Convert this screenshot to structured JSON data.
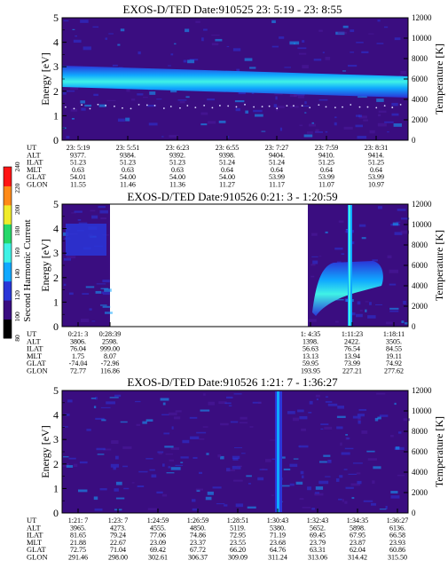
{
  "colors": {
    "background": "#ffffff",
    "text": "#000000",
    "spectrogram_low": "#3a0d80",
    "spectrogram_mid": "#2a36d8",
    "spectrogram_band": "#10a8ff",
    "spectrogram_peak": "#3ff2e6",
    "colorbar": [
      "#000000",
      "#3a0d80",
      "#2a36d8",
      "#10a8ff",
      "#3ff2e6",
      "#25d86a",
      "#f0ec2a",
      "#ff8a18",
      "#ff1515"
    ]
  },
  "colorbar": {
    "label": "Second Harmonic Current",
    "ticks": [
      "80",
      "100",
      "120",
      "140",
      "160",
      "180",
      "200",
      "220",
      "240"
    ]
  },
  "panels": [
    {
      "title": "EXOS-D/TED   Date:910525  23: 5:19 - 23: 8:55",
      "ylabel": "Energy [eV]",
      "y2label": "Temperature [K]",
      "orbit_rows": [
        {
          "label": "UT",
          "values": [
            "23: 5:19",
            "23: 5:51",
            "23: 6:23",
            "23: 6:55",
            "23: 7:27",
            "23: 7:59",
            "23: 8:31"
          ]
        },
        {
          "label": "ALT",
          "values": [
            "9377.",
            "9384.",
            "9392.",
            "9398.",
            "9404.",
            "9410.",
            "9414."
          ]
        },
        {
          "label": "ILAT",
          "values": [
            "51.23",
            "51.23",
            "51.23",
            "51.24",
            "51.24",
            "51.25",
            "51.25"
          ]
        },
        {
          "label": "MLT",
          "values": [
            "0.63",
            "0.63",
            "0.63",
            "0.64",
            "0.64",
            "0.64",
            "0.64"
          ]
        },
        {
          "label": "GLAT",
          "values": [
            "54.01",
            "54.00",
            "54.00",
            "54.00",
            "53.99",
            "53.99",
            "53.99"
          ]
        },
        {
          "label": "GLON",
          "values": [
            "11.55",
            "11.46",
            "11.36",
            "11.27",
            "11.17",
            "11.07",
            "10.97"
          ]
        }
      ]
    },
    {
      "title": "EXOS-D/TED   Date:910526  0:21: 3 - 1:20:59",
      "ylabel": "Energy [eV]",
      "y2label": "Temperature [K]",
      "orbit_rows": [
        {
          "label": "UT",
          "values": [
            "0:21: 3",
            "0:28:39",
            "1: 4:35",
            "1:11:23",
            "1:18:11"
          ]
        },
        {
          "label": "ALT",
          "values": [
            "3806.",
            "2598.",
            "1398.",
            "2422.",
            "3505."
          ]
        },
        {
          "label": "ILAT",
          "values": [
            "76.04",
            "999.00",
            "56.63",
            "76.54",
            "84.55"
          ]
        },
        {
          "label": "MLT",
          "values": [
            "1.75",
            "8.07",
            "13.13",
            "13.94",
            "19.11"
          ]
        },
        {
          "label": "GLAT",
          "values": [
            "-74.04",
            "-72.96",
            "59.95",
            "73.99",
            "74.92"
          ]
        },
        {
          "label": "GLON",
          "values": [
            "72.77",
            "116.86",
            "193.95",
            "227.21",
            "277.62"
          ]
        }
      ]
    },
    {
      "title": "EXOS-D/TED   Date:910526  1:21: 7 - 1:36:27",
      "ylabel": "Energy [eV]",
      "y2label": "Temperature [K]",
      "orbit_rows": [
        {
          "label": "UT",
          "values": [
            "1:21: 7",
            "1:23: 7",
            "1:24:59",
            "1:26:59",
            "1:28:51",
            "1:30:43",
            "1:32:43",
            "1:34:35",
            "1:36:27"
          ]
        },
        {
          "label": "ALT",
          "values": [
            "3965.",
            "4273.",
            "4555.",
            "4850.",
            "5119.",
            "5380.",
            "5652.",
            "5898.",
            "6136."
          ]
        },
        {
          "label": "ILAT",
          "values": [
            "81.65",
            "79.24",
            "77.06",
            "74.86",
            "72.95",
            "71.19",
            "69.45",
            "67.95",
            "66.58"
          ]
        },
        {
          "label": "MLT",
          "values": [
            "21.88",
            "22.67",
            "23.09",
            "23.37",
            "23.55",
            "23.68",
            "23.79",
            "23.87",
            "23.93"
          ]
        },
        {
          "label": "GLAT",
          "values": [
            "72.75",
            "71.04",
            "69.42",
            "67.72",
            "66.20",
            "64.76",
            "63.31",
            "62.04",
            "60.86"
          ]
        },
        {
          "label": "GLON",
          "values": [
            "291.46",
            "298.00",
            "302.61",
            "306.37",
            "309.09",
            "311.24",
            "313.06",
            "314.42",
            "315.50"
          ]
        }
      ]
    }
  ],
  "chart_data": [
    {
      "type": "heatmap",
      "title": "EXOS-D/TED   Date:910525  23: 5:19 - 23: 8:55",
      "ylabel": "Energy [eV]",
      "y2label": "Temperature [K]",
      "ylim": [
        0,
        5
      ],
      "y2lim": [
        0,
        12000
      ],
      "yticks": [
        "0",
        "1",
        "2",
        "3",
        "4",
        "5"
      ],
      "y2ticks": [
        "0",
        "2000",
        "4000",
        "6000",
        "8000",
        "10000",
        "12000"
      ],
      "x": [
        "23: 5:19",
        "23: 5:51",
        "23: 6:23",
        "23: 6:55",
        "23: 7:27",
        "23: 7:59",
        "23: 8:31"
      ],
      "features": [
        {
          "kind": "band",
          "x_from": 0,
          "x_to": 1,
          "energy_center_start": 2.8,
          "energy_center_end": 2.45,
          "width": 0.5,
          "level": 220
        }
      ],
      "temperature_series": {
        "name": "temperature",
        "approx_K": 3300
      }
    },
    {
      "type": "heatmap",
      "title": "EXOS-D/TED   Date:910526  0:21: 3 - 1:20:59",
      "ylabel": "Energy [eV]",
      "y2label": "Temperature [K]",
      "ylim": [
        0,
        5
      ],
      "y2lim": [
        0,
        12000
      ],
      "yticks": [
        "0",
        "1",
        "2",
        "3",
        "4",
        "5"
      ],
      "y2ticks": [
        "0",
        "2000",
        "4000",
        "6000",
        "8000",
        "10000",
        "12000"
      ],
      "x": [
        "0:21: 3",
        "0:28:39",
        "1: 4:35",
        "1:11:23",
        "1:18:11"
      ],
      "data_gap": {
        "from": "0:28:39",
        "to": "1: 4:35"
      },
      "features": [
        {
          "kind": "patch",
          "x_from": 0.0,
          "x_to": 0.28,
          "energy_from": 3.0,
          "energy_to": 4.2,
          "level": 150
        },
        {
          "kind": "patch",
          "x_from": 0.71,
          "x_to": 0.93,
          "energy_from": 0.9,
          "energy_to": 2.2,
          "level": 220
        },
        {
          "kind": "spike",
          "x_at": 0.86,
          "level": 160
        }
      ]
    },
    {
      "type": "heatmap",
      "title": "EXOS-D/TED   Date:910526  1:21: 7 - 1:36:27",
      "ylabel": "Energy [eV]",
      "y2label": "Temperature [K]",
      "ylim": [
        0,
        5
      ],
      "y2lim": [
        0,
        12000
      ],
      "yticks": [
        "0",
        "1",
        "2",
        "3",
        "4",
        "5"
      ],
      "y2ticks": [
        "0",
        "2000",
        "4000",
        "6000",
        "8000",
        "10000",
        "12000"
      ],
      "x": [
        "1:21: 7",
        "1:23: 7",
        "1:24:59",
        "1:26:59",
        "1:28:51",
        "1:30:43",
        "1:32:43",
        "1:34:35",
        "1:36:27"
      ],
      "features": [
        {
          "kind": "spike",
          "x_at": 0.61,
          "level": 150
        }
      ]
    }
  ]
}
